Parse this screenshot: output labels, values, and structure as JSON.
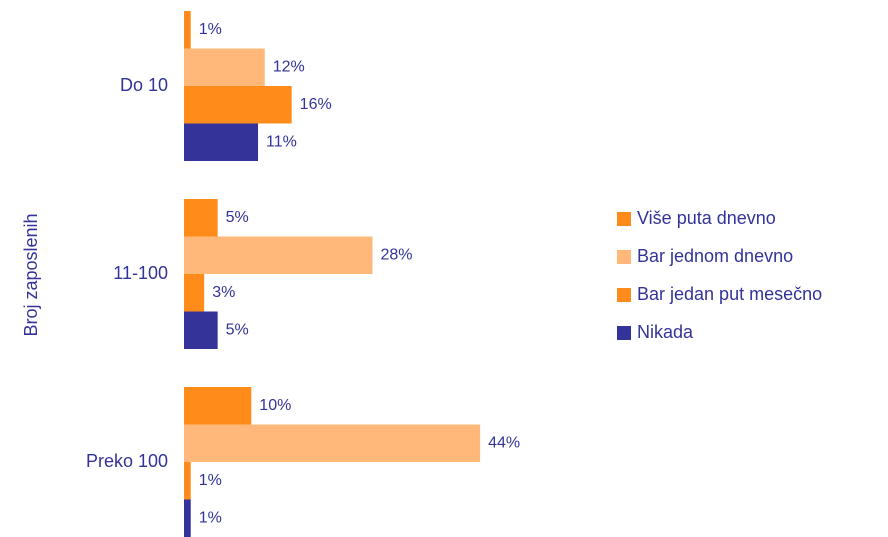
{
  "chart_data": {
    "type": "bar",
    "orientation": "horizontal",
    "y_label": "Broj zaposlenih",
    "categories": [
      "Do 10",
      "11-100",
      "Preko 100"
    ],
    "series": [
      {
        "name": "Više puta dnevno",
        "color": "#ff8c1a",
        "values": [
          1,
          5,
          10
        ],
        "value_labels": [
          "1%",
          "5%",
          "10%"
        ]
      },
      {
        "name": "Bar jednom dnevno",
        "color": "#ffb87a",
        "values": [
          12,
          28,
          44
        ],
        "value_labels": [
          "12%",
          "28%",
          "44%"
        ]
      },
      {
        "name": "Bar jedan put mesečno",
        "color": "#ff8c1a",
        "values": [
          16,
          3,
          1
        ],
        "value_labels": [
          "16%",
          "3%",
          "1%"
        ]
      },
      {
        "name": "Nikada",
        "color": "#333399",
        "values": [
          11,
          5,
          1
        ],
        "value_labels": [
          "11%",
          "5%",
          "1%"
        ]
      }
    ],
    "legend": "right"
  }
}
